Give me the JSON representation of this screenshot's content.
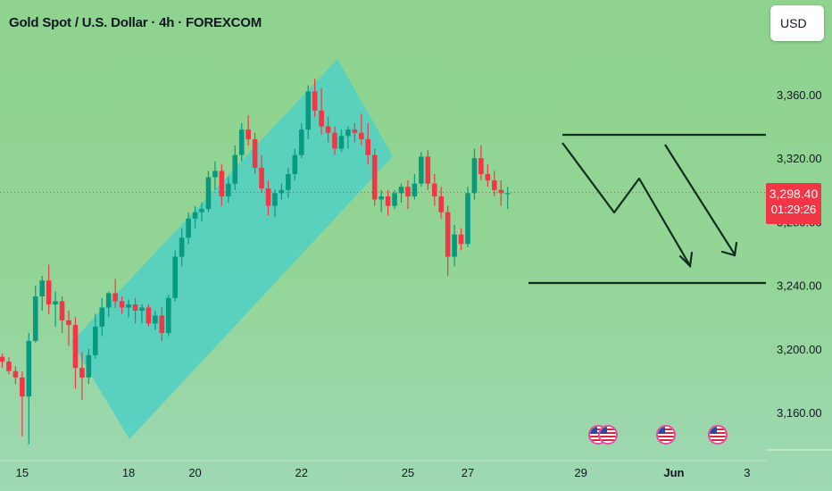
{
  "header": {
    "title": "Gold Spot / U.S. Dollar · 4h · FOREXCOM"
  },
  "currency_button": {
    "label": "USD"
  },
  "last_price": {
    "price": "3,298.40",
    "countdown": "01:29:26",
    "value": 3298.4,
    "color": "#f23645"
  },
  "colors": {
    "up": "#089981",
    "down": "#f23645",
    "channel": "#4fd0c4",
    "drawing": "#0f2e1f",
    "last_line": "#f23645"
  },
  "events": {
    "icons": [
      "flag-icon",
      "flag-icon",
      "flag-icon",
      "flag-icon"
    ],
    "count": 4
  },
  "chart_data": {
    "type": "candlestick",
    "title": "Gold Spot / U.S. Dollar · 4h · FOREXCOM",
    "xlabel": "",
    "ylabel": "",
    "ylim": [
      3130,
      3395
    ],
    "y_ticks": [
      {
        "value": 3360,
        "label": "3,360.00"
      },
      {
        "value": 3320,
        "label": "3,320.00"
      },
      {
        "value": 3280,
        "label": "3,280.00"
      },
      {
        "value": 3240,
        "label": "3,240.00"
      },
      {
        "value": 3200,
        "label": "3,200.00"
      },
      {
        "value": 3160,
        "label": "3,160.00"
      }
    ],
    "x_ticks": [
      {
        "label": "15",
        "index": 3,
        "bold": false
      },
      {
        "label": "18",
        "index": 19,
        "bold": false
      },
      {
        "label": "20",
        "index": 29,
        "bold": false
      },
      {
        "label": "22",
        "index": 45,
        "bold": false
      },
      {
        "label": "25",
        "index": 61,
        "bold": false
      },
      {
        "label": "27",
        "index": 70,
        "bold": false
      },
      {
        "label": "29",
        "index": 87,
        "bold": false
      },
      {
        "label": "Jun",
        "index": 101,
        "bold": true
      },
      {
        "label": "3",
        "index": 112,
        "bold": false
      }
    ],
    "candles": [
      [
        3195,
        3197,
        3188,
        3192
      ],
      [
        3192,
        3195,
        3184,
        3186
      ],
      [
        3186,
        3189,
        3178,
        3182
      ],
      [
        3182,
        3186,
        3145,
        3170
      ],
      [
        3170,
        3210,
        3140,
        3205
      ],
      [
        3205,
        3240,
        3204,
        3233
      ],
      [
        3233,
        3246,
        3224,
        3243
      ],
      [
        3243,
        3253,
        3222,
        3228
      ],
      [
        3228,
        3236,
        3214,
        3230
      ],
      [
        3230,
        3233,
        3210,
        3218
      ],
      [
        3218,
        3224,
        3202,
        3215
      ],
      [
        3215,
        3220,
        3175,
        3188
      ],
      [
        3188,
        3198,
        3168,
        3182
      ],
      [
        3182,
        3200,
        3178,
        3196
      ],
      [
        3196,
        3222,
        3194,
        3214
      ],
      [
        3214,
        3232,
        3208,
        3226
      ],
      [
        3226,
        3236,
        3220,
        3235
      ],
      [
        3235,
        3244,
        3226,
        3230
      ],
      [
        3230,
        3233,
        3222,
        3226
      ],
      [
        3226,
        3231,
        3220,
        3228
      ],
      [
        3228,
        3232,
        3216,
        3224
      ],
      [
        3224,
        3228,
        3216,
        3226
      ],
      [
        3226,
        3228,
        3214,
        3216
      ],
      [
        3216,
        3224,
        3212,
        3221
      ],
      [
        3221,
        3226,
        3205,
        3210
      ],
      [
        3210,
        3234,
        3208,
        3232
      ],
      [
        3232,
        3262,
        3230,
        3258
      ],
      [
        3258,
        3276,
        3252,
        3270
      ],
      [
        3270,
        3286,
        3266,
        3282
      ],
      [
        3282,
        3290,
        3276,
        3286
      ],
      [
        3286,
        3292,
        3280,
        3288
      ],
      [
        3288,
        3312,
        3286,
        3308
      ],
      [
        3308,
        3318,
        3300,
        3312
      ],
      [
        3312,
        3316,
        3290,
        3296
      ],
      [
        3296,
        3308,
        3292,
        3304
      ],
      [
        3304,
        3328,
        3300,
        3322
      ],
      [
        3322,
        3342,
        3318,
        3338
      ],
      [
        3338,
        3347,
        3328,
        3332
      ],
      [
        3332,
        3336,
        3310,
        3314
      ],
      [
        3314,
        3322,
        3298,
        3301
      ],
      [
        3301,
        3306,
        3284,
        3290
      ],
      [
        3290,
        3300,
        3283,
        3298
      ],
      [
        3298,
        3304,
        3294,
        3300
      ],
      [
        3300,
        3314,
        3295,
        3310
      ],
      [
        3310,
        3326,
        3306,
        3322
      ],
      [
        3322,
        3342,
        3320,
        3338
      ],
      [
        3338,
        3366,
        3332,
        3362
      ],
      [
        3362,
        3370,
        3346,
        3350
      ],
      [
        3350,
        3364,
        3335,
        3340
      ],
      [
        3340,
        3346,
        3330,
        3336
      ],
      [
        3336,
        3340,
        3322,
        3326
      ],
      [
        3326,
        3338,
        3324,
        3334
      ],
      [
        3334,
        3340,
        3326,
        3338
      ],
      [
        3338,
        3342,
        3330,
        3336
      ],
      [
        3336,
        3348,
        3328,
        3332
      ],
      [
        3332,
        3342,
        3316,
        3322
      ],
      [
        3322,
        3326,
        3290,
        3294
      ],
      [
        3294,
        3300,
        3286,
        3296
      ],
      [
        3296,
        3300,
        3284,
        3290
      ],
      [
        3290,
        3300,
        3288,
        3298
      ],
      [
        3298,
        3304,
        3292,
        3302
      ],
      [
        3302,
        3306,
        3288,
        3296
      ],
      [
        3296,
        3310,
        3294,
        3304
      ],
      [
        3304,
        3324,
        3302,
        3321
      ],
      [
        3321,
        3325,
        3300,
        3304
      ],
      [
        3304,
        3310,
        3290,
        3296
      ],
      [
        3296,
        3302,
        3282,
        3286
      ],
      [
        3286,
        3290,
        3246,
        3258
      ],
      [
        3258,
        3278,
        3252,
        3272
      ],
      [
        3272,
        3276,
        3262,
        3266
      ],
      [
        3266,
        3302,
        3264,
        3298
      ],
      [
        3298,
        3326,
        3294,
        3320
      ],
      [
        3320,
        3328,
        3306,
        3310
      ],
      [
        3310,
        3316,
        3302,
        3306
      ],
      [
        3306,
        3312,
        3296,
        3300
      ],
      [
        3300,
        3306,
        3290,
        3298
      ],
      [
        3298,
        3302,
        3288,
        3298
      ]
    ],
    "candle_x_indices_note": "",
    "drawings": [
      {
        "type": "parallel-channel"
      },
      {
        "type": "resistance-line",
        "value": 3335
      },
      {
        "type": "support-line",
        "value": 3241
      },
      {
        "type": "projection-path"
      },
      {
        "type": "projection-arrow"
      }
    ],
    "grid": false,
    "legend": "none"
  }
}
